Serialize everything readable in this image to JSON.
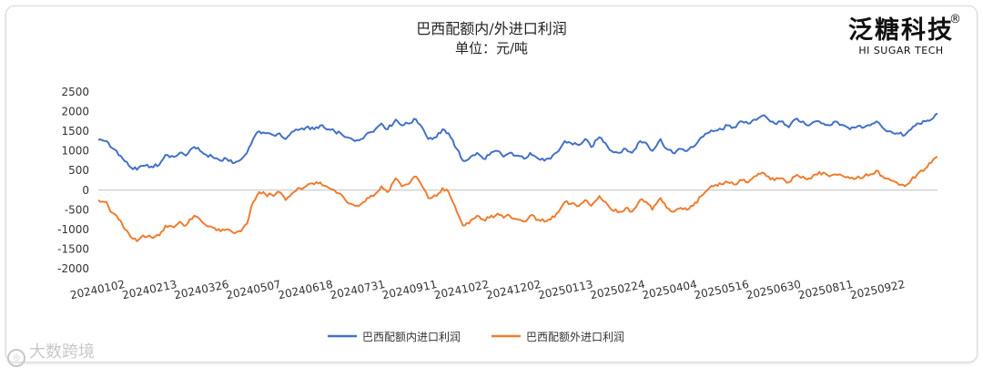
{
  "chart_data": {
    "type": "line",
    "title": "巴西配额内/外进口利润",
    "subtitle": "单位：元/吨",
    "ylim": [
      -2000,
      2500
    ],
    "yticks": [
      -2000,
      -1500,
      -1000,
      -500,
      0,
      500,
      1000,
      1500,
      2000,
      2500
    ],
    "x_ticks": [
      "20240102",
      "20240213",
      "20240326",
      "20240507",
      "20240618",
      "20240731",
      "20240911",
      "20241022",
      "20241202",
      "20250113",
      "20250224",
      "20250404",
      "20250516",
      "20250630",
      "20250811",
      "20250922"
    ],
    "grid": false,
    "legend_position": "bottom",
    "series": [
      {
        "name": "巴西配额内进口利润",
        "color": "#4472C4",
        "anchors": [
          [
            0,
            1280
          ],
          [
            4,
            1250
          ],
          [
            6,
            1100
          ],
          [
            9,
            1000
          ],
          [
            12,
            800
          ],
          [
            16,
            580
          ],
          [
            19,
            520
          ],
          [
            22,
            620
          ],
          [
            26,
            600
          ],
          [
            30,
            650
          ],
          [
            33,
            900
          ],
          [
            37,
            850
          ],
          [
            40,
            950
          ],
          [
            43,
            880
          ],
          [
            47,
            1100
          ],
          [
            50,
            1000
          ],
          [
            53,
            900
          ],
          [
            56,
            850
          ],
          [
            60,
            750
          ],
          [
            63,
            800
          ],
          [
            67,
            700
          ],
          [
            70,
            780
          ],
          [
            73,
            950
          ],
          [
            76,
            1300
          ],
          [
            79,
            1500
          ],
          [
            82,
            1450
          ],
          [
            86,
            1400
          ],
          [
            89,
            1450
          ],
          [
            92,
            1300
          ],
          [
            96,
            1500
          ],
          [
            99,
            1550
          ],
          [
            102,
            1600
          ],
          [
            106,
            1550
          ],
          [
            109,
            1650
          ],
          [
            112,
            1550
          ],
          [
            116,
            1500
          ],
          [
            119,
            1450
          ],
          [
            122,
            1350
          ],
          [
            126,
            1250
          ],
          [
            129,
            1300
          ],
          [
            132,
            1450
          ],
          [
            136,
            1550
          ],
          [
            139,
            1700
          ],
          [
            142,
            1550
          ],
          [
            146,
            1800
          ],
          [
            149,
            1650
          ],
          [
            152,
            1700
          ],
          [
            156,
            1800
          ],
          [
            159,
            1600
          ],
          [
            162,
            1300
          ],
          [
            166,
            1350
          ],
          [
            169,
            1550
          ],
          [
            172,
            1450
          ],
          [
            176,
            1050
          ],
          [
            179,
            750
          ],
          [
            182,
            800
          ],
          [
            186,
            950
          ],
          [
            189,
            800
          ],
          [
            192,
            900
          ],
          [
            196,
            1000
          ],
          [
            199,
            850
          ],
          [
            202,
            950
          ],
          [
            206,
            880
          ],
          [
            209,
            800
          ],
          [
            212,
            950
          ],
          [
            216,
            800
          ],
          [
            219,
            750
          ],
          [
            222,
            800
          ],
          [
            226,
            1000
          ],
          [
            229,
            1250
          ],
          [
            232,
            1200
          ],
          [
            236,
            1150
          ],
          [
            239,
            1300
          ],
          [
            242,
            1100
          ],
          [
            246,
            1350
          ],
          [
            249,
            1200
          ],
          [
            252,
            1000
          ],
          [
            256,
            950
          ],
          [
            259,
            1050
          ],
          [
            262,
            950
          ],
          [
            266,
            1250
          ],
          [
            269,
            1200
          ],
          [
            272,
            1000
          ],
          [
            276,
            1300
          ],
          [
            279,
            1050
          ],
          [
            282,
            950
          ],
          [
            286,
            1050
          ],
          [
            289,
            1000
          ],
          [
            292,
            1100
          ],
          [
            296,
            1350
          ],
          [
            299,
            1450
          ],
          [
            302,
            1500
          ],
          [
            306,
            1550
          ],
          [
            309,
            1650
          ],
          [
            312,
            1600
          ],
          [
            316,
            1750
          ],
          [
            319,
            1700
          ],
          [
            322,
            1800
          ],
          [
            326,
            1900
          ],
          [
            329,
            1800
          ],
          [
            332,
            1700
          ],
          [
            336,
            1750
          ],
          [
            339,
            1600
          ],
          [
            342,
            1800
          ],
          [
            346,
            1750
          ],
          [
            349,
            1650
          ],
          [
            352,
            1750
          ],
          [
            356,
            1700
          ],
          [
            359,
            1650
          ],
          [
            362,
            1750
          ],
          [
            366,
            1650
          ],
          [
            369,
            1550
          ],
          [
            372,
            1600
          ],
          [
            376,
            1600
          ],
          [
            379,
            1650
          ],
          [
            382,
            1750
          ],
          [
            386,
            1550
          ],
          [
            389,
            1500
          ],
          [
            392,
            1450
          ],
          [
            396,
            1400
          ],
          [
            399,
            1550
          ],
          [
            402,
            1700
          ],
          [
            406,
            1750
          ],
          [
            409,
            1800
          ],
          [
            412,
            1950
          ]
        ]
      },
      {
        "name": "巴西配额外进口利润",
        "color": "#ED7D31",
        "anchors": [
          [
            0,
            -250
          ],
          [
            4,
            -300
          ],
          [
            6,
            -550
          ],
          [
            9,
            -650
          ],
          [
            12,
            -900
          ],
          [
            16,
            -1200
          ],
          [
            19,
            -1300
          ],
          [
            22,
            -1150
          ],
          [
            26,
            -1200
          ],
          [
            30,
            -1150
          ],
          [
            33,
            -900
          ],
          [
            37,
            -950
          ],
          [
            40,
            -800
          ],
          [
            43,
            -900
          ],
          [
            47,
            -650
          ],
          [
            50,
            -750
          ],
          [
            53,
            -900
          ],
          [
            56,
            -950
          ],
          [
            60,
            -1050
          ],
          [
            63,
            -1000
          ],
          [
            67,
            -1100
          ],
          [
            70,
            -1050
          ],
          [
            73,
            -850
          ],
          [
            76,
            -300
          ],
          [
            79,
            -50
          ],
          [
            82,
            -100
          ],
          [
            86,
            -150
          ],
          [
            89,
            -50
          ],
          [
            92,
            -250
          ],
          [
            96,
            -50
          ],
          [
            99,
            50
          ],
          [
            102,
            100
          ],
          [
            106,
            150
          ],
          [
            109,
            200
          ],
          [
            112,
            100
          ],
          [
            116,
            0
          ],
          [
            119,
            -100
          ],
          [
            122,
            -300
          ],
          [
            126,
            -400
          ],
          [
            129,
            -350
          ],
          [
            132,
            -200
          ],
          [
            136,
            -100
          ],
          [
            139,
            100
          ],
          [
            142,
            -50
          ],
          [
            146,
            300
          ],
          [
            149,
            100
          ],
          [
            152,
            150
          ],
          [
            156,
            350
          ],
          [
            159,
            100
          ],
          [
            162,
            -200
          ],
          [
            166,
            -150
          ],
          [
            169,
            50
          ],
          [
            172,
            -50
          ],
          [
            176,
            -550
          ],
          [
            179,
            -900
          ],
          [
            182,
            -850
          ],
          [
            186,
            -650
          ],
          [
            189,
            -750
          ],
          [
            192,
            -700
          ],
          [
            196,
            -600
          ],
          [
            199,
            -700
          ],
          [
            202,
            -650
          ],
          [
            206,
            -750
          ],
          [
            209,
            -800
          ],
          [
            212,
            -650
          ],
          [
            216,
            -750
          ],
          [
            219,
            -800
          ],
          [
            222,
            -750
          ],
          [
            226,
            -550
          ],
          [
            229,
            -300
          ],
          [
            232,
            -350
          ],
          [
            236,
            -400
          ],
          [
            239,
            -250
          ],
          [
            242,
            -400
          ],
          [
            246,
            -150
          ],
          [
            249,
            -300
          ],
          [
            252,
            -500
          ],
          [
            256,
            -550
          ],
          [
            259,
            -450
          ],
          [
            262,
            -550
          ],
          [
            266,
            -250
          ],
          [
            269,
            -300
          ],
          [
            272,
            -500
          ],
          [
            276,
            -200
          ],
          [
            279,
            -450
          ],
          [
            282,
            -550
          ],
          [
            286,
            -450
          ],
          [
            289,
            -500
          ],
          [
            292,
            -400
          ],
          [
            296,
            -150
          ],
          [
            299,
            0
          ],
          [
            302,
            100
          ],
          [
            306,
            150
          ],
          [
            309,
            200
          ],
          [
            312,
            150
          ],
          [
            316,
            250
          ],
          [
            319,
            200
          ],
          [
            322,
            350
          ],
          [
            326,
            450
          ],
          [
            329,
            350
          ],
          [
            332,
            250
          ],
          [
            336,
            300
          ],
          [
            339,
            200
          ],
          [
            342,
            350
          ],
          [
            346,
            350
          ],
          [
            349,
            300
          ],
          [
            352,
            400
          ],
          [
            356,
            450
          ],
          [
            359,
            350
          ],
          [
            362,
            400
          ],
          [
            366,
            350
          ],
          [
            369,
            300
          ],
          [
            372,
            300
          ],
          [
            376,
            350
          ],
          [
            379,
            400
          ],
          [
            382,
            500
          ],
          [
            386,
            300
          ],
          [
            389,
            250
          ],
          [
            392,
            200
          ],
          [
            396,
            100
          ],
          [
            399,
            250
          ],
          [
            402,
            400
          ],
          [
            406,
            550
          ],
          [
            409,
            700
          ],
          [
            412,
            850
          ]
        ]
      }
    ]
  },
  "brand": {
    "name": "泛糖科技",
    "reg": "®",
    "sub": "HI SUGAR TECH"
  },
  "watermark": {
    "text": "大数跨境"
  }
}
